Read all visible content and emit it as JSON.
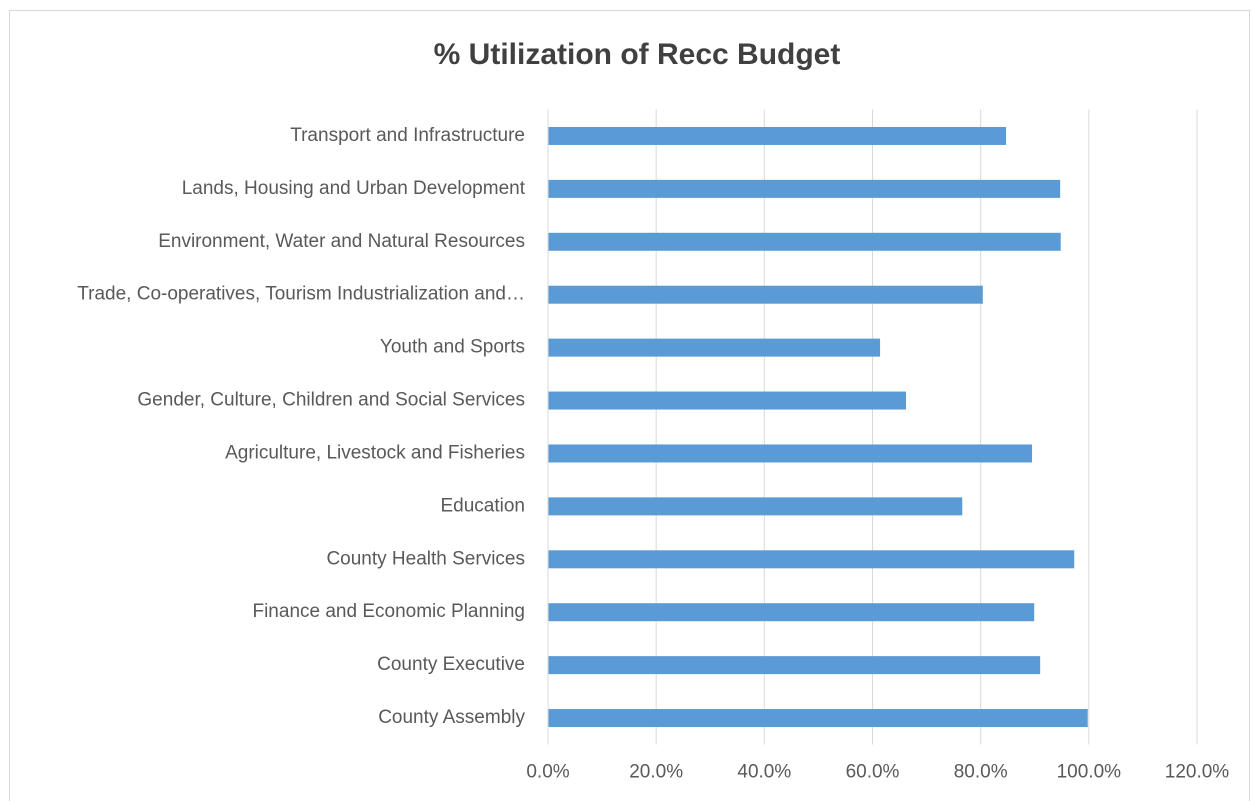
{
  "chart_data": {
    "type": "bar",
    "orientation": "horizontal",
    "title": "% Utilization of Recc Budget",
    "categories": [
      "Transport and Infrastructure",
      "Lands, Housing and Urban Development",
      "Environment, Water and Natural Resources",
      "Trade, Co-operatives, Tourism Industrialization and…",
      "Youth and Sports",
      "Gender, Culture, Children and Social Services",
      "Agriculture, Livestock and Fisheries",
      "Education",
      "County Health Services",
      "Finance and Economic Planning",
      "County Executive",
      "County Assembly"
    ],
    "values": [
      84.7,
      94.7,
      94.8,
      80.4,
      61.4,
      66.2,
      89.5,
      76.6,
      97.3,
      89.9,
      91.0,
      99.8
    ],
    "color": "#5b9bd5",
    "xlim": [
      0,
      120
    ],
    "xticks": [
      {
        "value": 0,
        "label": "0.0%"
      },
      {
        "value": 20,
        "label": "20.0%"
      },
      {
        "value": 40,
        "label": "40.0%"
      },
      {
        "value": 60,
        "label": "60.0%"
      },
      {
        "value": 80,
        "label": "80.0%"
      },
      {
        "value": 100,
        "label": "100.0%"
      },
      {
        "value": 120,
        "label": "120.0%"
      }
    ],
    "grid": true
  }
}
